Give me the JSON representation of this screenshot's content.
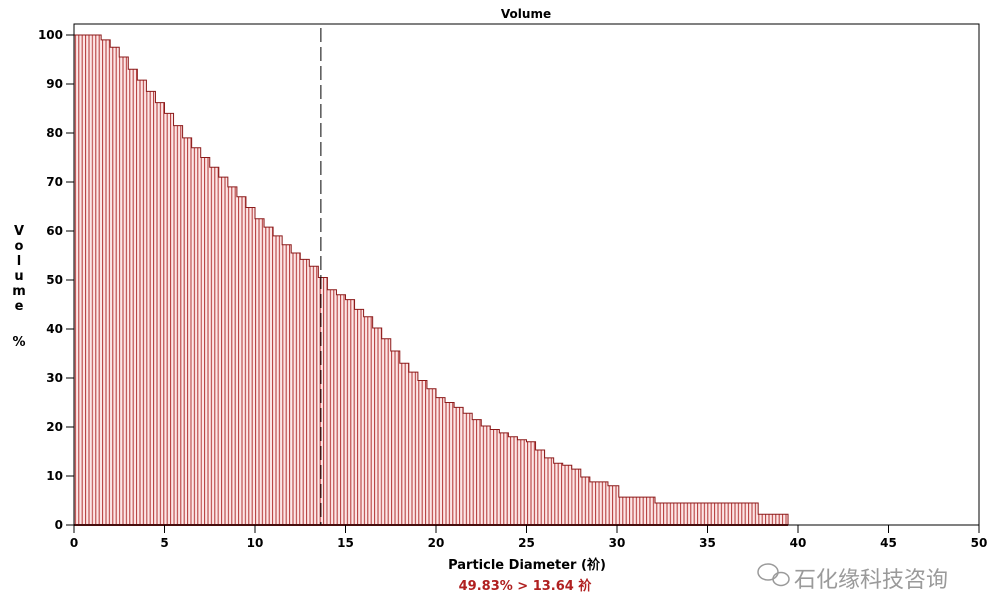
{
  "chart_data": {
    "type": "bar",
    "subtype": "cumulative-step-histogram",
    "title": "Volume",
    "xlabel": "Particle Diameter (祄)",
    "ylabel_letters": [
      "V",
      "o",
      "l",
      "u",
      "m",
      "e",
      "%"
    ],
    "xlim": [
      0,
      50
    ],
    "ylim": [
      0,
      100
    ],
    "xticks": [
      0,
      5,
      10,
      15,
      20,
      25,
      30,
      35,
      40,
      45,
      50
    ],
    "yticks": [
      0,
      10,
      20,
      30,
      40,
      50,
      60,
      70,
      80,
      90,
      100
    ],
    "grid": false,
    "colors": {
      "fill": "#fde6e6",
      "hatch": "#b03030",
      "outline": "#8b1a1a",
      "annotation": "#b02020"
    },
    "steps": [
      [
        0,
        100
      ],
      [
        0.5,
        100
      ],
      [
        1,
        100
      ],
      [
        1.5,
        99
      ],
      [
        2,
        97.5
      ],
      [
        2.5,
        95.5
      ],
      [
        3,
        93
      ],
      [
        3.5,
        90.8
      ],
      [
        4,
        88.5
      ],
      [
        4.5,
        86.2
      ],
      [
        5,
        84
      ],
      [
        5.5,
        81.5
      ],
      [
        6,
        79
      ],
      [
        6.5,
        77
      ],
      [
        7,
        75
      ],
      [
        7.5,
        73
      ],
      [
        8,
        71
      ],
      [
        8.5,
        69
      ],
      [
        9,
        67
      ],
      [
        9.5,
        64.8
      ],
      [
        10,
        62.5
      ],
      [
        10.5,
        60.8
      ],
      [
        11,
        59
      ],
      [
        11.5,
        57.2
      ],
      [
        12,
        55.5
      ],
      [
        12.5,
        54.2
      ],
      [
        13,
        52.8
      ],
      [
        13.5,
        50.5
      ],
      [
        14,
        48
      ],
      [
        14.5,
        47
      ],
      [
        15,
        46
      ],
      [
        15.5,
        44
      ],
      [
        16,
        42.5
      ],
      [
        16.5,
        40.2
      ],
      [
        17,
        38
      ],
      [
        17.5,
        35.5
      ],
      [
        18,
        33
      ],
      [
        18.5,
        31.2
      ],
      [
        19,
        29.5
      ],
      [
        19.5,
        27.8
      ],
      [
        20,
        26
      ],
      [
        20.5,
        25
      ],
      [
        21,
        24
      ],
      [
        21.5,
        22.8
      ],
      [
        22,
        21.5
      ],
      [
        22.5,
        20.2
      ],
      [
        23,
        19.5
      ],
      [
        23.5,
        18.8
      ],
      [
        24,
        18
      ],
      [
        24.5,
        17.4
      ],
      [
        25,
        17
      ],
      [
        25.5,
        15.3
      ],
      [
        26,
        13.7
      ],
      [
        26.5,
        12.6
      ],
      [
        27,
        12.2
      ],
      [
        27.5,
        11.4
      ],
      [
        28,
        9.8
      ],
      [
        28.5,
        8.8
      ],
      [
        29,
        8.8
      ],
      [
        29.5,
        8
      ],
      [
        30.1,
        5.7
      ],
      [
        32.1,
        4.5
      ],
      [
        37.8,
        2.2
      ]
    ],
    "x_end": 39.45,
    "marker": {
      "x": 13.64,
      "style": "dashed"
    },
    "annotation": "49.83% > 13.64 祄"
  },
  "watermark": "石化缘科技咨询"
}
